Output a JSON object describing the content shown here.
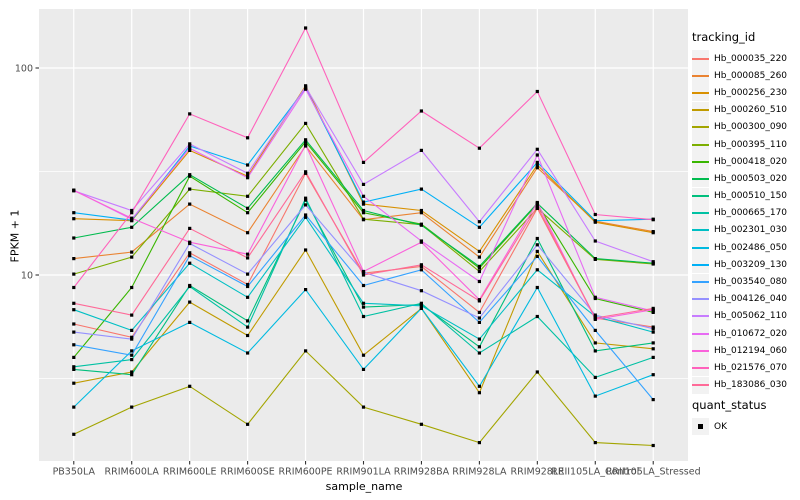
{
  "chart_data": {
    "type": "line",
    "title": "",
    "xlabel": "sample_name",
    "ylabel": "FPKM + 1",
    "y_scale": "log10",
    "ylim": [
      1.27,
      170
    ],
    "y_ticks": [
      100,
      10
    ],
    "y_minor_ticks": [
      31.62,
      3.162
    ],
    "grid": true,
    "legend_position": "right",
    "legend_title": "tracking_id",
    "point_marker": {
      "shape": "square",
      "color": "#000000",
      "label": "OK"
    },
    "quant_status": {
      "title": "quant_status",
      "values": [
        "OK"
      ]
    },
    "categories": [
      "PB350LA",
      "RRIM600LA",
      "RRIM600LE",
      "RRIM600SE",
      "RRIM600PE",
      "RRIM901LA",
      "RRIM928BA",
      "RRIM928LA",
      "RRIM928LE",
      "RRII105LA_Control",
      "RRII105LA_Stressed"
    ],
    "series": [
      {
        "name": "Hb_000035_220",
        "color": "#F8766D",
        "values": [
          5.8,
          5.0,
          12.8,
          9.0,
          31.0,
          10.2,
          11.0,
          6.6,
          21.0,
          6.2,
          5.6
        ]
      },
      {
        "name": "Hb_000085_260",
        "color": "#EA8331",
        "values": [
          12.0,
          12.9,
          22.0,
          16.0,
          42.0,
          18.5,
          20.0,
          12.2,
          33.0,
          18.2,
          16.2
        ]
      },
      {
        "name": "Hb_000256_230",
        "color": "#D89000",
        "values": [
          18.7,
          18.3,
          40.0,
          30.0,
          82.0,
          22.0,
          20.5,
          13.0,
          34.0,
          18.0,
          16.0
        ]
      },
      {
        "name": "Hb_000260_510",
        "color": "#C09B00",
        "values": [
          3.0,
          3.4,
          7.4,
          5.1,
          13.2,
          4.1,
          6.9,
          2.7,
          13.0,
          4.7,
          4.4
        ]
      },
      {
        "name": "Hb_000300_090",
        "color": "#A3A500",
        "values": [
          1.7,
          2.3,
          2.9,
          1.9,
          4.3,
          2.3,
          1.9,
          1.55,
          3.4,
          1.55,
          1.5
        ]
      },
      {
        "name": "Hb_000395_110",
        "color": "#7CAE00",
        "values": [
          10.1,
          12.2,
          26.0,
          24.0,
          54.0,
          18.6,
          17.5,
          10.4,
          21.0,
          11.9,
          11.3
        ]
      },
      {
        "name": "Hb_000418_020",
        "color": "#39B600",
        "values": [
          4.0,
          8.7,
          30.0,
          20.0,
          44.0,
          20.0,
          17.6,
          10.8,
          22.0,
          7.7,
          6.6
        ]
      },
      {
        "name": "Hb_000503_020",
        "color": "#00BB4E",
        "values": [
          15.1,
          17.0,
          30.5,
          21.0,
          45.0,
          20.5,
          17.4,
          11.0,
          22.2,
          12.0,
          11.4
        ]
      },
      {
        "name": "Hb_000510_150",
        "color": "#00BF7D",
        "values": [
          3.5,
          3.3,
          8.9,
          6.0,
          23.0,
          7.0,
          7.2,
          4.5,
          15.0,
          4.3,
          4.7
        ]
      },
      {
        "name": "Hb_000665_170",
        "color": "#00C1A3",
        "values": [
          3.6,
          3.9,
          8.8,
          5.6,
          23.5,
          6.3,
          7.3,
          4.2,
          6.3,
          3.2,
          4.0
        ]
      },
      {
        "name": "Hb_002301_030",
        "color": "#00BFC4",
        "values": [
          6.8,
          5.4,
          11.4,
          7.8,
          19.0,
          7.3,
          7.1,
          4.9,
          10.6,
          6.3,
          5.3
        ]
      },
      {
        "name": "Hb_002486_050",
        "color": "#00BAE0",
        "values": [
          2.3,
          4.3,
          5.9,
          4.2,
          8.5,
          3.5,
          6.9,
          2.9,
          8.7,
          2.6,
          3.3
        ]
      },
      {
        "name": "Hb_003209_130",
        "color": "#00B0F6",
        "values": [
          20.0,
          18.4,
          42.0,
          34.0,
          80.0,
          22.5,
          26.0,
          17.0,
          35.0,
          18.3,
          18.6
        ]
      },
      {
        "name": "Hb_003540_080",
        "color": "#35A2FF",
        "values": [
          4.6,
          4.1,
          12.4,
          8.8,
          19.5,
          8.9,
          10.6,
          5.9,
          12.3,
          5.4,
          2.5
        ]
      },
      {
        "name": "Hb_004126_040",
        "color": "#9590FF",
        "values": [
          5.3,
          4.9,
          14.2,
          10.1,
          21.8,
          10.3,
          8.4,
          6.2,
          14.0,
          6.4,
          5.5
        ]
      },
      {
        "name": "Hb_005062_110",
        "color": "#C77CFF",
        "values": [
          25.5,
          20.5,
          43.0,
          31.0,
          81.0,
          27.4,
          40.0,
          18.1,
          40.5,
          14.6,
          11.6
        ]
      },
      {
        "name": "Hb_010672_020",
        "color": "#E76BF3",
        "values": [
          25.7,
          18.6,
          41.0,
          29.5,
          79.0,
          24.0,
          14.6,
          9.3,
          38.0,
          7.8,
          6.7
        ]
      },
      {
        "name": "Hb_012194_060",
        "color": "#FA62DB",
        "values": [
          25.6,
          18.8,
          14.4,
          12.6,
          42.5,
          10.4,
          14.4,
          7.6,
          22.4,
          6.1,
          6.8
        ]
      },
      {
        "name": "Hb_021576_070",
        "color": "#FF62BC",
        "values": [
          8.7,
          20.0,
          60.0,
          46.0,
          156.0,
          35.0,
          62.0,
          41.0,
          77.0,
          19.6,
          18.5
        ]
      },
      {
        "name": "Hb_183086_030",
        "color": "#FF6A98",
        "values": [
          7.3,
          6.4,
          16.8,
          12.1,
          31.5,
          10.0,
          11.2,
          7.5,
          21.5,
          6.2,
          6.9
        ]
      }
    ],
    "style": {
      "panel_bg": "#EBEBEB",
      "grid_color": "#FFFFFF",
      "tick_label_color": "#4D4D4D",
      "tick_mark_color": "#333333",
      "point_color": "#000000",
      "legend_key_bg": "#F2F2F2"
    }
  }
}
